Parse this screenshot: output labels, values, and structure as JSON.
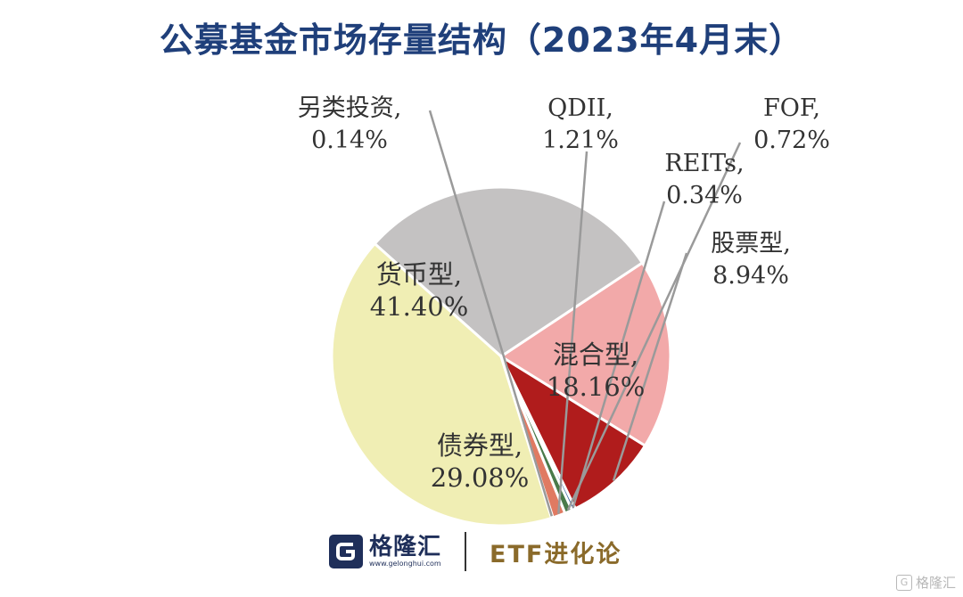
{
  "chart_data": {
    "type": "pie",
    "title": "公募基金市场存量结构（2023年4月末）",
    "unit": "%",
    "slices": [
      {
        "name": "股票型",
        "value": 8.94,
        "label": "8.94%",
        "color": "#b01c1c"
      },
      {
        "name": "混合型",
        "value": 18.16,
        "label": "18.16%",
        "color": "#f2a9a9"
      },
      {
        "name": "债券型",
        "value": 29.08,
        "label": "29.08%",
        "color": "#c4c2c2"
      },
      {
        "name": "货币型",
        "value": 41.4,
        "label": "41.40%",
        "color": "#f0eeb4"
      },
      {
        "name": "另类投资",
        "value": 0.14,
        "label": "0.14%",
        "color": "#7a7a7a"
      },
      {
        "name": "QDII",
        "value": 1.21,
        "label": "1.21%",
        "color": "#e07a62"
      },
      {
        "name": "FOF",
        "value": 0.72,
        "label": "0.72%",
        "color": "#4a7a4a"
      },
      {
        "name": "REITs",
        "value": 0.34,
        "label": "0.34%",
        "color": "#2e5a9a"
      }
    ]
  },
  "footer": {
    "logo_name": "格隆汇",
    "logo_url": "www.gelonghui.com",
    "brand": "ETF进化论"
  },
  "watermark": "格隆汇"
}
